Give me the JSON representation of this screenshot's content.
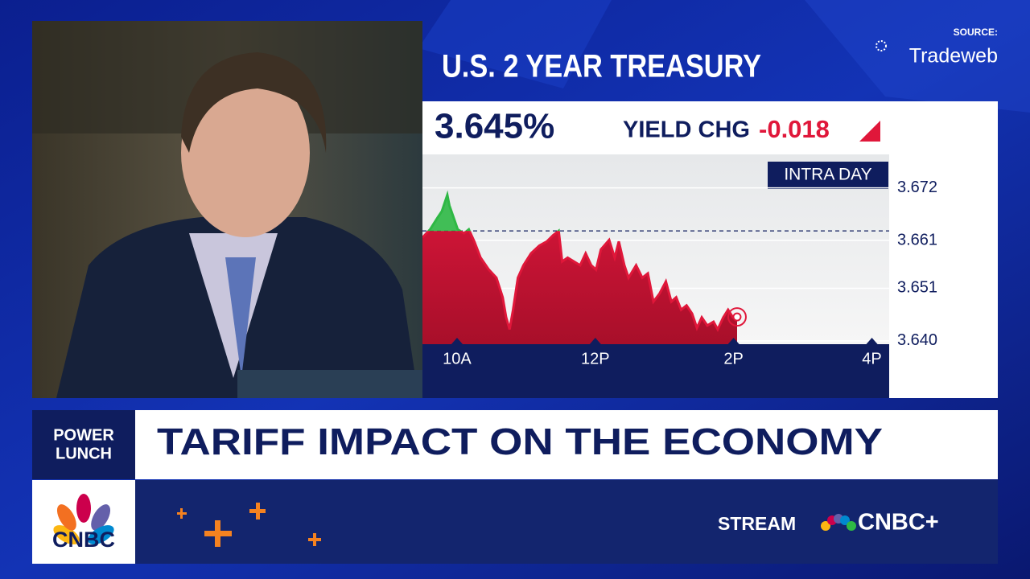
{
  "source_label": "SOURCE:",
  "source_name": "Tradeweb",
  "panel": {
    "title": "U.S. 2 YEAR TREASURY",
    "yield": "3.645%",
    "change_label": "YIELD CHG",
    "change": "-0.018",
    "period": "INTRA DAY"
  },
  "show": {
    "line1": "POWER",
    "line2": "LUNCH"
  },
  "headline": "TARIFF IMPACT ON THE ECONOMY",
  "network": "CNBC",
  "promo": {
    "prefix": "STREAM",
    "brand": "CNBC+"
  },
  "chart_data": {
    "type": "area",
    "x": [
      9.5,
      9.61,
      9.72,
      9.78,
      9.86,
      9.89,
      9.95,
      10.01,
      10.1,
      10.17,
      10.25,
      10.34,
      10.46,
      10.57,
      10.66,
      10.71,
      10.76,
      10.81,
      10.88,
      10.96,
      11.07,
      11.19,
      11.3,
      11.39,
      11.47,
      11.52,
      11.6,
      11.69,
      11.78,
      11.86,
      11.94,
      12.01,
      12.08,
      12.2,
      12.28,
      12.34,
      12.42,
      12.48,
      12.59,
      12.68,
      12.76,
      12.84,
      12.93,
      13.02,
      13.1,
      13.17,
      13.24,
      13.32,
      13.4,
      13.47,
      13.54,
      13.62,
      13.71,
      13.77,
      13.85,
      13.92,
      13.99,
      14.05
    ],
    "values": [
      3.6616,
      3.6633,
      3.6658,
      3.6671,
      3.6705,
      3.6683,
      3.6658,
      3.6633,
      3.6625,
      3.6633,
      3.6608,
      3.6574,
      3.6549,
      3.6532,
      3.6491,
      3.6449,
      3.6424,
      3.6465,
      3.6532,
      3.6558,
      3.6583,
      3.6599,
      3.6608,
      3.6621,
      3.663,
      3.6566,
      3.6574,
      3.6566,
      3.6558,
      3.6583,
      3.6558,
      3.6549,
      3.6591,
      3.6611,
      3.6574,
      3.6608,
      3.6558,
      3.6532,
      3.6558,
      3.6532,
      3.6541,
      3.6482,
      3.6499,
      3.6524,
      3.6482,
      3.6491,
      3.6465,
      3.6474,
      3.6457,
      3.6427,
      3.6449,
      3.6432,
      3.644,
      3.6424,
      3.6449,
      3.6465,
      3.6449,
      3.645
    ],
    "reference_line": 3.663,
    "up_color": "#2fb845",
    "down_color": "#e0173a",
    "xlim": [
      9.5,
      16.25
    ],
    "xticks": [
      {
        "value": 10,
        "label": "10A"
      },
      {
        "value": 12,
        "label": "12P"
      },
      {
        "value": 14,
        "label": "2P"
      },
      {
        "value": 16,
        "label": "4P"
      }
    ],
    "ylim": [
      3.6393,
      3.679
    ],
    "yticks": [
      {
        "value": 3.64,
        "label": "3.640"
      },
      3.651,
      3.661,
      3.672
    ],
    "grid": true
  }
}
